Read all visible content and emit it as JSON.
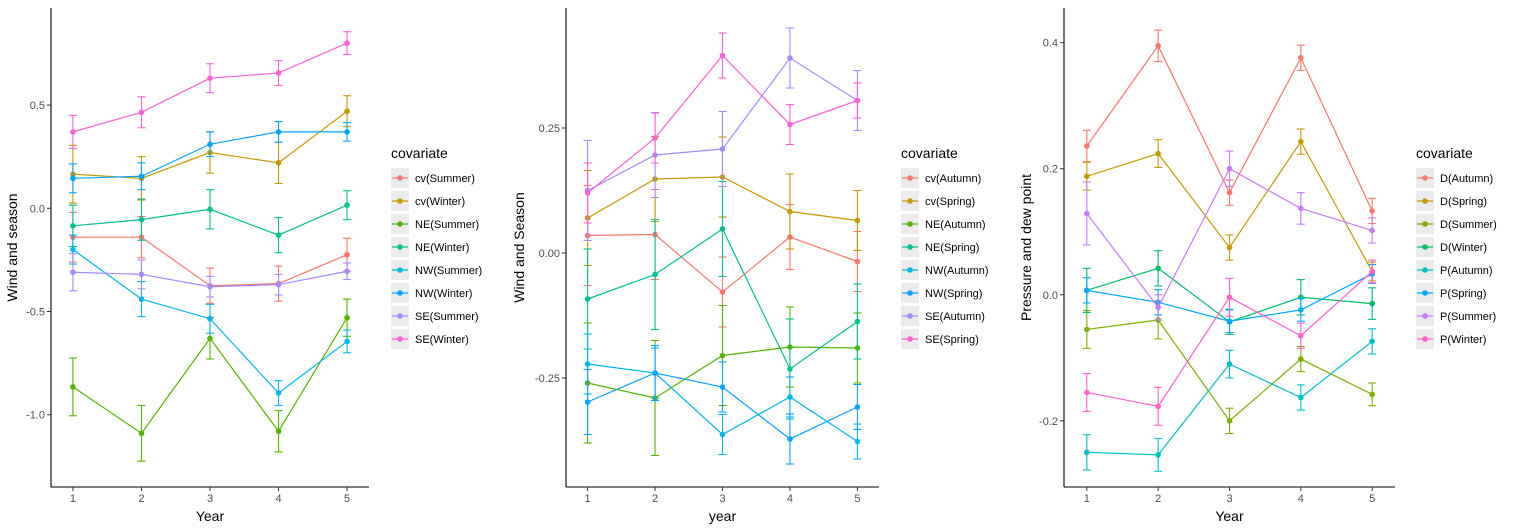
{
  "chart_data": [
    {
      "type": "line",
      "xlabel": "Year",
      "ylabel": "Wind and season",
      "x": [
        1,
        2,
        3,
        4,
        5
      ],
      "ylim": [
        -1.35,
        0.97
      ],
      "yticks": [
        -1.0,
        -0.5,
        0.0,
        0.5
      ],
      "ytick_labels": [
        "-1.0",
        "-0.5",
        "0.0",
        "0.5"
      ],
      "xtick_labels": [
        "1",
        "2",
        "3",
        "4",
        "5"
      ],
      "legend_title": "covariate",
      "legend_position": "right",
      "grid": false,
      "error_bars": true,
      "series": [
        {
          "name": "cv(Summer)",
          "color": "#F8766D",
          "values": [
            -0.14,
            -0.14,
            -0.375,
            -0.365,
            -0.225
          ],
          "err": [
            0.12,
            0.1,
            0.085,
            0.085,
            0.08
          ]
        },
        {
          "name": "cv(Winter)",
          "color": "#C49A00",
          "values": [
            0.165,
            0.145,
            0.27,
            0.22,
            0.47
          ],
          "err": [
            0.14,
            0.105,
            0.1,
            0.1,
            0.075
          ]
        },
        {
          "name": "NE(Summer)",
          "color": "#53B400",
          "values": [
            -0.865,
            -1.09,
            -0.63,
            -1.08,
            -0.53
          ],
          "err": [
            0.14,
            0.135,
            0.1,
            0.1,
            0.09
          ]
        },
        {
          "name": "NE(Winter)",
          "color": "#00C094",
          "values": [
            -0.085,
            -0.055,
            -0.005,
            -0.13,
            0.015
          ],
          "err": [
            0.1,
            0.1,
            0.095,
            0.085,
            0.07
          ]
        },
        {
          "name": "NW(Summer)",
          "color": "#00B6EB",
          "values": [
            -0.2,
            -0.44,
            -0.535,
            -0.895,
            -0.645
          ],
          "err": [
            0.07,
            0.085,
            0.07,
            0.06,
            0.055
          ]
        },
        {
          "name": "NW(Winter)",
          "color": "#06A4FF",
          "values": [
            0.145,
            0.155,
            0.31,
            0.37,
            0.37
          ],
          "err": [
            0.07,
            0.065,
            0.06,
            0.05,
            0.045
          ]
        },
        {
          "name": "SE(Summer)",
          "color": "#A58AFF",
          "values": [
            -0.31,
            -0.32,
            -0.38,
            -0.37,
            -0.305
          ],
          "err": [
            0.09,
            0.07,
            0.05,
            0.05,
            0.04
          ]
        },
        {
          "name": "SE(Winter)",
          "color": "#FB61D7",
          "values": [
            0.37,
            0.465,
            0.63,
            0.655,
            0.8
          ],
          "err": [
            0.08,
            0.075,
            0.07,
            0.06,
            0.055
          ]
        }
      ]
    },
    {
      "type": "line",
      "xlabel": "year",
      "ylabel": "Wind and Season",
      "x": [
        1,
        2,
        3,
        4,
        5
      ],
      "ylim": [
        -0.468,
        0.49
      ],
      "yticks": [
        -0.25,
        0.0,
        0.25
      ],
      "ytick_labels": [
        "-0.25",
        "0.00",
        "0.25"
      ],
      "xtick_labels": [
        "1",
        "2",
        "3",
        "4",
        "5"
      ],
      "legend_title": "covariate",
      "legend_position": "right",
      "grid": false,
      "error_bars": true,
      "series": [
        {
          "name": "cv(Autumn)",
          "color": "#F8766D",
          "values": [
            0.035,
            0.037,
            -0.078,
            0.032,
            -0.017
          ],
          "err": [
            0.1,
            0.09,
            0.07,
            0.065,
            0.06
          ]
        },
        {
          "name": "cv(Spring)",
          "color": "#C49A00",
          "values": [
            0.07,
            0.148,
            0.152,
            0.083,
            0.065
          ],
          "err": [
            0.095,
            0.085,
            0.08,
            0.075,
            0.06
          ]
        },
        {
          "name": "NE(Autumn)",
          "color": "#53B400",
          "values": [
            -0.26,
            -0.29,
            -0.205,
            -0.188,
            -0.19
          ],
          "err": [
            0.12,
            0.115,
            0.1,
            0.08,
            0.07
          ]
        },
        {
          "name": "NE(Spring)",
          "color": "#00C094",
          "values": [
            -0.092,
            -0.043,
            0.048,
            -0.232,
            -0.137
          ],
          "err": [
            0.1,
            0.11,
            0.095,
            0.1,
            0.075
          ]
        },
        {
          "name": "NW(Autumn)",
          "color": "#00B6EB",
          "values": [
            -0.222,
            -0.24,
            -0.363,
            -0.288,
            -0.377
          ],
          "err": [
            0.06,
            0.05,
            0.04,
            0.04,
            0.035
          ]
        },
        {
          "name": "NW(Spring)",
          "color": "#06A4FF",
          "values": [
            -0.298,
            -0.24,
            -0.268,
            -0.372,
            -0.308
          ],
          "err": [
            0.065,
            0.055,
            0.05,
            0.05,
            0.045
          ]
        },
        {
          "name": "SE(Autumn)",
          "color": "#A58AFF",
          "values": [
            0.125,
            0.196,
            0.208,
            0.39,
            0.305
          ],
          "err": [
            0.1,
            0.085,
            0.075,
            0.06,
            0.06
          ]
        },
        {
          "name": "SE(Spring)",
          "color": "#FB61D7",
          "values": [
            0.12,
            0.23,
            0.395,
            0.257,
            0.305
          ],
          "err": [
            0.06,
            0.05,
            0.045,
            0.04,
            0.035
          ]
        }
      ]
    },
    {
      "type": "line",
      "xlabel": "Year",
      "ylabel": "Pressure and dew point",
      "x": [
        1,
        2,
        3,
        4,
        5
      ],
      "ylim": [
        -0.305,
        0.455
      ],
      "yticks": [
        -0.2,
        0.0,
        0.2,
        0.4
      ],
      "ytick_labels": [
        "-0.2",
        "0.0",
        "0.2",
        "0.4"
      ],
      "xtick_labels": [
        "1",
        "2",
        "3",
        "4",
        "5"
      ],
      "legend_title": "covariate",
      "legend_position": "right",
      "grid": false,
      "error_bars": true,
      "series": [
        {
          "name": "D(Autumn)",
          "color": "#F8766D",
          "values": [
            0.236,
            0.395,
            0.162,
            0.376,
            0.133
          ],
          "err": [
            0.025,
            0.025,
            0.02,
            0.02,
            0.02
          ]
        },
        {
          "name": "D(Spring)",
          "color": "#C49A00",
          "values": [
            0.188,
            0.224,
            0.075,
            0.243,
            0.037
          ],
          "err": [
            0.022,
            0.022,
            0.02,
            0.02,
            0.015
          ]
        },
        {
          "name": "D(Summer)",
          "color": "#7CAE00",
          "values": [
            -0.055,
            -0.04,
            -0.2,
            -0.102,
            -0.158
          ],
          "err": [
            0.03,
            0.03,
            0.02,
            0.02,
            0.018
          ]
        },
        {
          "name": "D(Winter)",
          "color": "#00BE67",
          "values": [
            0.007,
            0.042,
            -0.043,
            -0.004,
            -0.014
          ],
          "err": [
            0.035,
            0.028,
            0.02,
            0.028,
            0.025
          ]
        },
        {
          "name": "P(Autumn)",
          "color": "#00BFC4",
          "values": [
            -0.25,
            -0.254,
            -0.11,
            -0.163,
            -0.074
          ],
          "err": [
            0.028,
            0.026,
            0.022,
            0.02,
            0.02
          ]
        },
        {
          "name": "P(Spring)",
          "color": "#00A9FF",
          "values": [
            0.007,
            -0.012,
            -0.042,
            -0.024,
            0.033
          ],
          "err": [
            0.02,
            0.02,
            0.018,
            0.018,
            0.015
          ]
        },
        {
          "name": "P(Summer)",
          "color": "#C77CFF",
          "values": [
            0.129,
            -0.02,
            0.2,
            0.137,
            0.102
          ],
          "err": [
            0.05,
            0.02,
            0.028,
            0.025,
            0.02
          ]
        },
        {
          "name": "P(Winter)",
          "color": "#FF61CC",
          "values": [
            -0.155,
            -0.177,
            -0.004,
            -0.065,
            0.037
          ],
          "err": [
            0.03,
            0.03,
            0.03,
            0.02,
            0.018
          ]
        }
      ]
    }
  ]
}
